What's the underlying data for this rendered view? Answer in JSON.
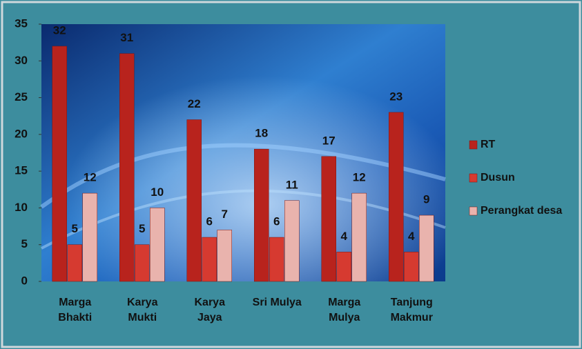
{
  "chart_data": {
    "type": "bar",
    "categories": [
      "Marga Bhakti",
      "Karya Mukti",
      "Karya Jaya",
      "Sri Mulya",
      "Marga Mulya",
      "Tanjung Makmur"
    ],
    "series": [
      {
        "name": "RT",
        "color": "#b8231d",
        "values": [
          32,
          31,
          22,
          18,
          17,
          23
        ]
      },
      {
        "name": "Dusun",
        "color": "#d63a30",
        "values": [
          5,
          5,
          6,
          6,
          4,
          4
        ]
      },
      {
        "name": "Perangkat desa",
        "color": "#e9b3ad",
        "values": [
          12,
          10,
          7,
          11,
          12,
          9
        ]
      }
    ],
    "ylim": [
      0,
      35
    ],
    "yticks": [
      0,
      5,
      10,
      15,
      20,
      25,
      30,
      35
    ],
    "legend": "right"
  }
}
